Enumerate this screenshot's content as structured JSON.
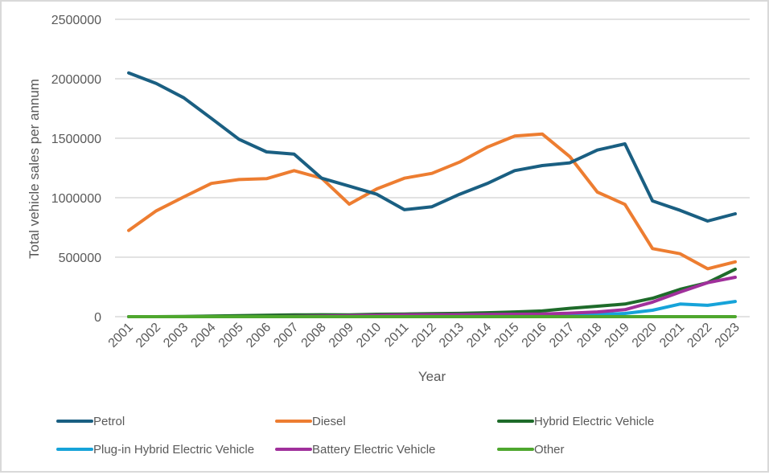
{
  "chart_data": {
    "type": "line",
    "title": "",
    "xlabel": "Year",
    "ylabel": "Total vehicle sales per annum",
    "ylim": [
      0,
      2500000
    ],
    "yticks": [
      "0",
      "500000",
      "1000000",
      "1500000",
      "2000000",
      "2500000"
    ],
    "ytick_values": [
      0,
      500000,
      1000000,
      1500000,
      2000000,
      2500000
    ],
    "grid": true,
    "legend_position": "bottom",
    "categories": [
      "2001",
      "2002",
      "2003",
      "2004",
      "2005",
      "2006",
      "2007",
      "2008",
      "2009",
      "2010",
      "2011",
      "2012",
      "2013",
      "2014",
      "2015",
      "2016",
      "2017",
      "2018",
      "2019",
      "2020",
      "2021",
      "2022",
      "2023"
    ],
    "series": [
      {
        "name": "Petrol",
        "color": "#1a5f82",
        "values": [
          2049000,
          1960000,
          1840000,
          1667000,
          1491000,
          1385000,
          1367000,
          1164000,
          1097000,
          1029000,
          899000,
          924000,
          1029000,
          1119000,
          1228000,
          1270000,
          1293000,
          1401000,
          1453000,
          973000,
          894000,
          804000,
          865000
        ]
      },
      {
        "name": "Diesel",
        "color": "#ed7d31",
        "values": [
          725000,
          890000,
          1007000,
          1120000,
          1153000,
          1160000,
          1228000,
          1164000,
          946000,
          1074000,
          1164000,
          1205000,
          1299000,
          1424000,
          1518000,
          1536000,
          1345000,
          1047000,
          944000,
          572000,
          529000,
          403000,
          461000
        ]
      },
      {
        "name": "Hybrid Electric Vehicle",
        "color": "#1e6b2a",
        "values": [
          0,
          0,
          2000,
          5000,
          8000,
          12000,
          15000,
          16000,
          15000,
          20000,
          22000,
          25000,
          28000,
          33000,
          40000,
          48000,
          70000,
          88000,
          106000,
          155000,
          230000,
          286000,
          399000
        ]
      },
      {
        "name": "Plug-in Hybrid Electric Vehicle",
        "color": "#16a3d9",
        "values": [
          0,
          0,
          0,
          0,
          0,
          0,
          0,
          0,
          0,
          0,
          1000,
          2000,
          3000,
          5000,
          8000,
          12000,
          15000,
          18000,
          27000,
          54000,
          106000,
          95000,
          128000
        ]
      },
      {
        "name": "Battery Electric Vehicle",
        "color": "#a0309b",
        "values": [
          0,
          0,
          0,
          0,
          0,
          0,
          2000,
          5000,
          8000,
          12000,
          15000,
          16000,
          17000,
          18000,
          20000,
          22000,
          30000,
          40000,
          59000,
          122000,
          207000,
          286000,
          331000
        ]
      },
      {
        "name": "Other",
        "color": "#4ea72e",
        "values": [
          0,
          0,
          0,
          0,
          0,
          0,
          0,
          0,
          0,
          0,
          0,
          0,
          0,
          0,
          0,
          0,
          0,
          0,
          0,
          0,
          0,
          0,
          0
        ]
      }
    ]
  }
}
